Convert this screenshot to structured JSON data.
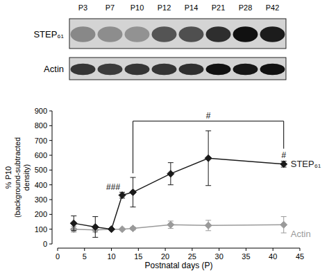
{
  "blot": {
    "lanes": [
      "P3",
      "P7",
      "P10",
      "P12",
      "P14",
      "P21",
      "P28",
      "P42"
    ],
    "rows": [
      "STEP₆₁",
      "Actin"
    ]
  },
  "chart_data": {
    "type": "line",
    "x_label": "Postnatal days (P)",
    "y_label": [
      "% P10",
      "(background-subtracted",
      "density)"
    ],
    "x": [
      3,
      7,
      10,
      12,
      14,
      21,
      28,
      42
    ],
    "series": [
      {
        "name": "STEP₆₁",
        "color": "#1a1a1a",
        "marker": "diamond",
        "values": [
          140,
          115,
          100,
          330,
          350,
          475,
          580,
          540
        ],
        "errors": [
          50,
          70,
          0,
          20,
          100,
          75,
          185,
          20
        ]
      },
      {
        "name": "Actin",
        "color": "#9a9a9a",
        "marker": "diamond",
        "values": [
          100,
          95,
          100,
          100,
          105,
          130,
          125,
          130
        ],
        "errors": [
          20,
          15,
          0,
          5,
          10,
          25,
          35,
          55
        ]
      }
    ],
    "annotations": [
      "###",
      "#",
      "#"
    ],
    "xlim": [
      0,
      45
    ],
    "xticks": [
      0,
      5,
      10,
      15,
      20,
      25,
      30,
      35,
      40,
      45
    ],
    "ylim": [
      0,
      900
    ],
    "yticks": [
      0,
      100,
      200,
      300,
      400,
      500,
      600,
      700,
      800,
      900
    ],
    "grid": false
  }
}
